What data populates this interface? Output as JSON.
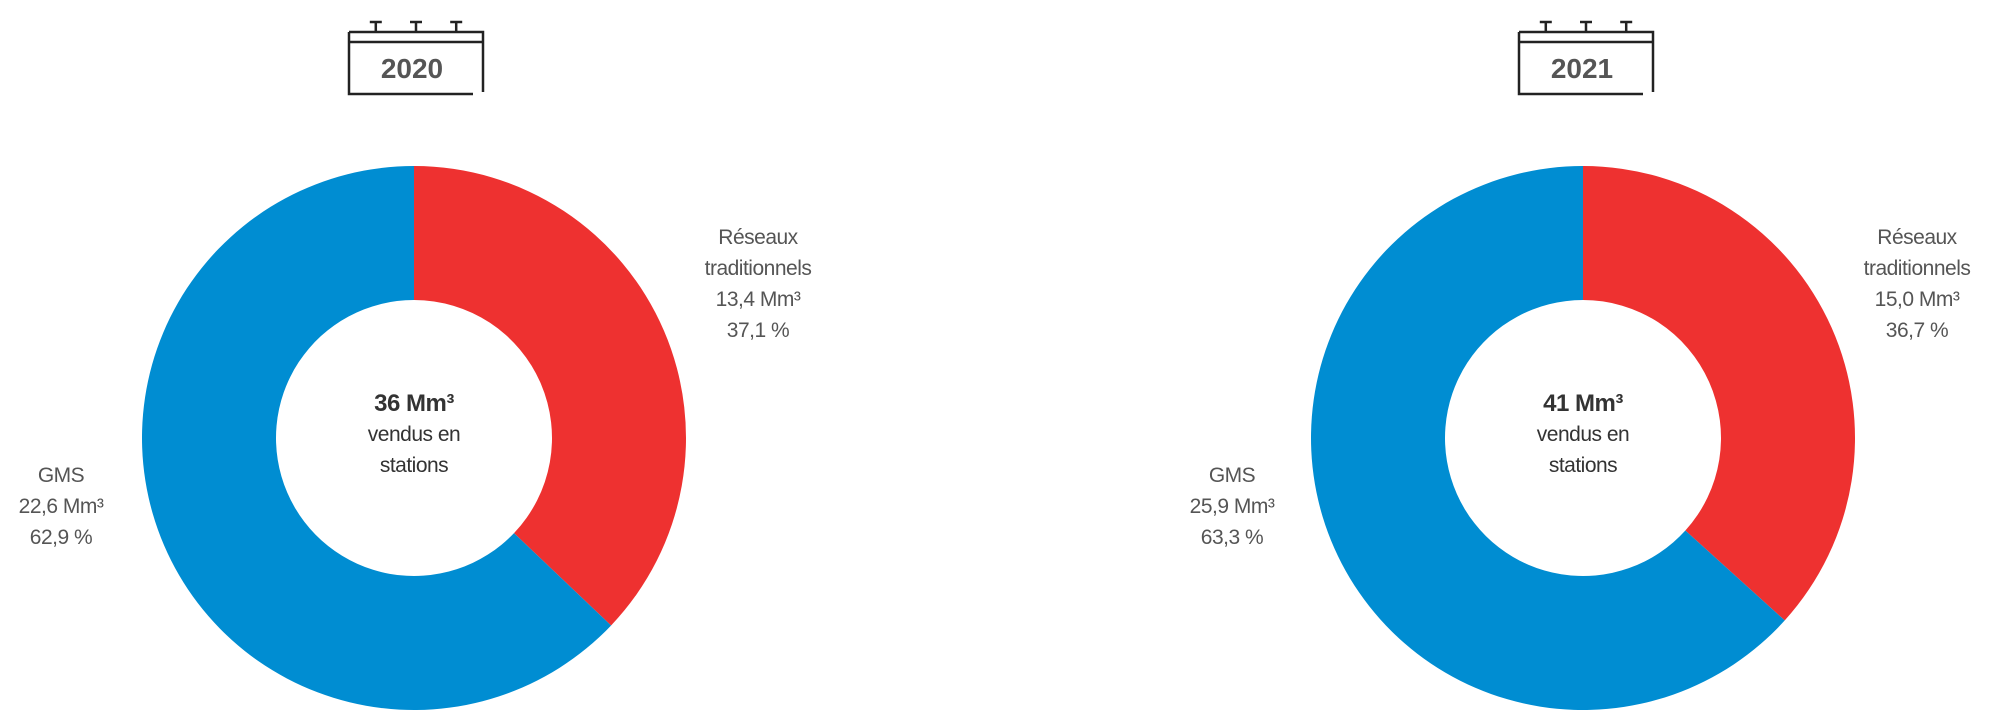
{
  "chart_data": [
    {
      "type": "pie",
      "title": "2020",
      "center_title": "36 Mm³",
      "center_subtitle": "vendus en stations",
      "categories": [
        "Réseaux traditionnels",
        "GMS"
      ],
      "values": [
        37.1,
        62.9
      ],
      "value_labels": [
        "37,1 %",
        "62,9 %"
      ],
      "volume_labels": [
        "13,4 Mm³",
        "22,6 Mm³"
      ],
      "colors": [
        "#ee3130",
        "#008dd2"
      ]
    },
    {
      "type": "pie",
      "title": "2021",
      "center_title": "41 Mm³",
      "center_subtitle": "vendus en stations",
      "categories": [
        "Réseaux traditionnels",
        "GMS"
      ],
      "values": [
        36.7,
        63.3
      ],
      "value_labels": [
        "36,7 %",
        "63,3 %"
      ],
      "volume_labels": [
        "15,0 Mm³",
        "25,9 Mm³"
      ],
      "colors": [
        "#ee3130",
        "#008dd2"
      ]
    }
  ]
}
